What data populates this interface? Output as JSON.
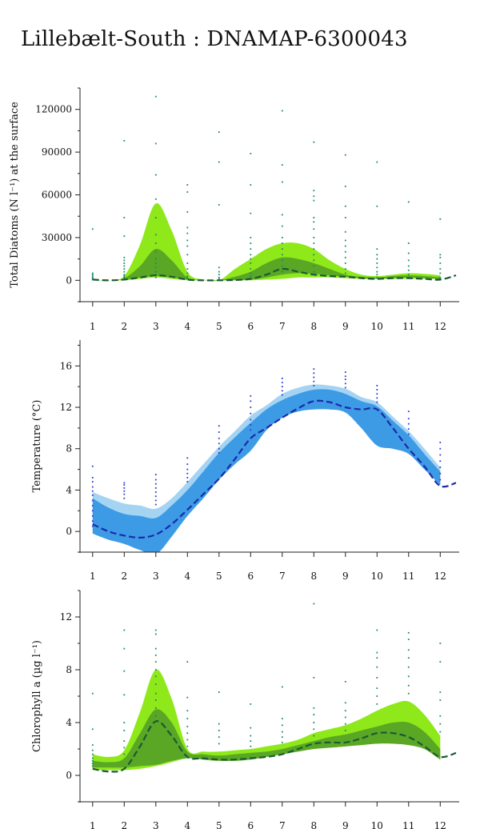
{
  "title": "Lillebælt-South : DNAMAP-6300043",
  "chart_data": [
    {
      "type": "area",
      "ylabel": "Total Diatoms (N l⁻¹) at the surface",
      "xlim": [
        0.6,
        12.6
      ],
      "ylim": [
        -15000,
        135000
      ],
      "x_ticks": [
        1,
        2,
        3,
        4,
        5,
        6,
        7,
        8,
        9,
        10,
        11,
        12
      ],
      "y_ticks": [
        0,
        30000,
        60000,
        90000,
        120000
      ],
      "y_tick_labels": [
        "0",
        "30000",
        "60000",
        "90000",
        "120000"
      ],
      "colors": {
        "outer": "#8ee81a",
        "inner": "#5aa625",
        "line": "#1a5a35",
        "dots": "#1f8a6a"
      },
      "x": [
        1,
        1.5,
        2,
        2.5,
        3,
        3.5,
        4,
        4.5,
        5,
        5.5,
        6,
        6.5,
        7,
        7.5,
        8,
        8.5,
        9,
        9.5,
        10,
        10.5,
        11,
        11.5,
        12
      ],
      "band_outer": {
        "low": [
          0,
          0,
          0,
          1000,
          2000,
          1000,
          0,
          0,
          0,
          0,
          0,
          500,
          1000,
          2000,
          2000,
          2000,
          1500,
          1000,
          1000,
          1000,
          1000,
          1000,
          1000
        ],
        "high": [
          0,
          0,
          3000,
          25000,
          54000,
          35000,
          6000,
          500,
          0,
          8000,
          15000,
          22000,
          26000,
          26000,
          22000,
          14000,
          8000,
          4000,
          3000,
          4000,
          5000,
          4500,
          3500
        ]
      },
      "band_inner": {
        "low": [
          0,
          0,
          500,
          2000,
          3000,
          2000,
          500,
          0,
          0,
          0,
          500,
          2000,
          4000,
          5000,
          4500,
          3500,
          2500,
          1500,
          1000,
          1500,
          2000,
          1500,
          1000
        ],
        "high": [
          0,
          0,
          1500,
          10000,
          22000,
          14000,
          2000,
          0,
          0,
          2500,
          6000,
          12000,
          16000,
          15000,
          12000,
          8000,
          4000,
          2500,
          2000,
          3000,
          3500,
          3000,
          2000
        ]
      },
      "median": {
        "x": [
          1,
          1.5,
          2,
          2.5,
          3,
          3.5,
          4,
          4.5,
          5,
          5.5,
          6,
          6.5,
          7,
          7.5,
          8,
          8.5,
          9,
          9.5,
          10,
          10.5,
          11,
          11.5,
          12,
          12.5
        ],
        "y": [
          500,
          0,
          500,
          2000,
          3500,
          2500,
          500,
          0,
          0,
          200,
          1000,
          4000,
          8000,
          6000,
          4000,
          3000,
          2500,
          1500,
          1000,
          1500,
          1500,
          1000,
          500,
          3500
        ]
      },
      "observations": [
        {
          "x": 1,
          "y": [
            36000,
            5000,
            4000,
            3000,
            2000,
            1500,
            1000,
            500
          ]
        },
        {
          "x": 2,
          "y": [
            98000,
            44000,
            31000,
            16000,
            14000,
            12000,
            10000,
            8000,
            6000,
            4000,
            3000,
            2000,
            1000
          ]
        },
        {
          "x": 3,
          "y": [
            129000,
            96000,
            74000,
            57000,
            44000,
            32000,
            26000,
            20000,
            15000,
            12000,
            9000,
            6000,
            4000,
            2000
          ]
        },
        {
          "x": 4,
          "y": [
            67000,
            62000,
            48000,
            37000,
            33000,
            28000,
            24000,
            18000,
            12000,
            8000,
            5000,
            3000,
            2000,
            1000
          ]
        },
        {
          "x": 5,
          "y": [
            104000,
            83000,
            53000,
            9000,
            6000,
            4000,
            2000,
            1000
          ]
        },
        {
          "x": 6,
          "y": [
            89000,
            67000,
            47000,
            30000,
            26000,
            22000,
            18000,
            15000,
            12000,
            8000,
            5000,
            3000
          ]
        },
        {
          "x": 7,
          "y": [
            119000,
            81000,
            69000,
            46000,
            38000,
            30000,
            26000,
            22000,
            18000,
            14000,
            10000,
            6000
          ]
        },
        {
          "x": 8,
          "y": [
            97000,
            63000,
            59000,
            56000,
            44000,
            41000,
            36000,
            30000,
            26000,
            22000,
            18000,
            14000,
            10000,
            6000
          ]
        },
        {
          "x": 9,
          "y": [
            88000,
            66000,
            52000,
            44000,
            34000,
            28000,
            24000,
            20000,
            16000,
            12000,
            8000,
            5000
          ]
        },
        {
          "x": 10,
          "y": [
            83000,
            52000,
            22000,
            18000,
            15000,
            12000,
            9000,
            6000,
            4000,
            2000
          ]
        },
        {
          "x": 11,
          "y": [
            55000,
            26000,
            19000,
            14000,
            10000,
            7000,
            4000,
            2000
          ]
        },
        {
          "x": 12,
          "y": [
            43000,
            18000,
            16000,
            12000,
            8000,
            5000,
            2000,
            1000
          ]
        }
      ]
    },
    {
      "type": "area",
      "ylabel": "Temperature (°C)",
      "xlim": [
        0.6,
        12.6
      ],
      "ylim": [
        -2,
        18.5
      ],
      "x_ticks": [
        1,
        2,
        3,
        4,
        5,
        6,
        7,
        8,
        9,
        10,
        11,
        12
      ],
      "y_ticks": [
        0,
        4,
        8,
        12,
        16
      ],
      "y_tick_labels": [
        "0",
        "4",
        "8",
        "12",
        "16"
      ],
      "colors": {
        "outer": "#a5d4f3",
        "inner": "#3d9be6",
        "line": "#1c2aa8",
        "dots": "#2b3cd0"
      },
      "x": [
        1,
        1.5,
        2,
        2.5,
        3,
        3.5,
        4,
        4.5,
        5,
        5.5,
        6,
        6.5,
        7,
        7.5,
        8,
        8.5,
        9,
        9.5,
        10,
        10.5,
        11,
        11.5,
        12
      ],
      "band_outer": {
        "low": [
          -0.2,
          -0.8,
          -1.2,
          -1.8,
          -2.2,
          -0.5,
          1.5,
          3.2,
          5.0,
          6.5,
          7.8,
          9.8,
          11.0,
          11.6,
          11.8,
          11.8,
          11.5,
          10.0,
          8.3,
          8.0,
          7.5,
          6.0,
          4.5
        ],
        "high": [
          3.8,
          3.2,
          2.7,
          2.5,
          2.2,
          3.2,
          4.8,
          6.5,
          8.2,
          9.7,
          11.2,
          12.2,
          13.3,
          13.9,
          14.2,
          14.1,
          13.8,
          13.0,
          12.5,
          11.1,
          9.7,
          8.0,
          6.2
        ]
      },
      "band_inner": {
        "low": [
          -0.2,
          -0.8,
          -1.2,
          -1.8,
          -2.2,
          -0.5,
          1.5,
          3.2,
          5.0,
          6.5,
          7.8,
          9.8,
          11.0,
          11.6,
          11.8,
          11.8,
          11.5,
          10.0,
          8.3,
          8.0,
          7.5,
          6.0,
          4.5
        ],
        "high": [
          3.2,
          2.3,
          1.7,
          1.5,
          1.3,
          2.5,
          4.0,
          5.8,
          7.6,
          9.1,
          10.5,
          11.8,
          12.7,
          13.3,
          13.7,
          13.7,
          13.3,
          12.6,
          12.1,
          10.7,
          9.3,
          7.5,
          5.8
        ]
      },
      "median": {
        "x": [
          1,
          1.5,
          2,
          2.5,
          3,
          3.5,
          4,
          4.5,
          5,
          5.5,
          6,
          6.5,
          7,
          7.5,
          8,
          8.5,
          9,
          9.5,
          10,
          10.5,
          11,
          11.5,
          12,
          12.5
        ],
        "y": [
          0.7,
          0,
          -0.4,
          -0.6,
          -0.3,
          0.7,
          2.1,
          3.6,
          5.1,
          7.0,
          9.0,
          10.0,
          11.0,
          11.9,
          12.6,
          12.5,
          12.0,
          11.8,
          11.8,
          10.0,
          8.0,
          6.3,
          4.4,
          4.7
        ]
      },
      "observations": [
        {
          "x": 1,
          "y": [
            6.3,
            5.2,
            4.8,
            4.3,
            3.9,
            3.5,
            3.0,
            2.5,
            2.0,
            1.5,
            1.0,
            0.5
          ]
        },
        {
          "x": 2,
          "y": [
            4.7,
            4.5,
            4.2,
            3.9,
            3.6,
            3.2
          ]
        },
        {
          "x": 3,
          "y": [
            5.5,
            5.0,
            4.6,
            4.2,
            3.8,
            3.4,
            3.0,
            2.6
          ]
        },
        {
          "x": 4,
          "y": [
            7.1,
            6.5,
            6.0,
            5.6,
            5.2,
            4.8
          ]
        },
        {
          "x": 5,
          "y": [
            10.2,
            9.6,
            9.0,
            8.5,
            8.0,
            7.6
          ]
        },
        {
          "x": 6,
          "y": [
            13.1,
            12.6,
            12.0,
            11.4,
            10.8,
            10.3,
            9.8
          ]
        },
        {
          "x": 7,
          "y": [
            14.8,
            14.4,
            14.0,
            13.6,
            13.2
          ]
        },
        {
          "x": 8,
          "y": [
            15.7,
            15.3,
            14.9,
            14.5,
            14.1
          ]
        },
        {
          "x": 9,
          "y": [
            15.4,
            15.0,
            14.7,
            14.3,
            13.9
          ]
        },
        {
          "x": 10,
          "y": [
            14.1,
            13.7,
            13.3,
            12.9,
            12.5
          ]
        },
        {
          "x": 11,
          "y": [
            11.6,
            10.9,
            10.4,
            9.9,
            9.4
          ]
        },
        {
          "x": 12,
          "y": [
            8.6,
            8.0,
            7.4,
            6.8,
            6.2,
            5.6,
            5.0
          ]
        }
      ]
    },
    {
      "type": "area",
      "ylabel": "Chlorophyll a (µg l⁻¹)",
      "xlim": [
        0.6,
        12.6
      ],
      "ylim": [
        -2,
        14
      ],
      "x_ticks": [
        1,
        2,
        3,
        4,
        5,
        6,
        7,
        8,
        9,
        10,
        11,
        12
      ],
      "y_ticks": [
        0,
        4,
        8,
        12
      ],
      "y_tick_labels": [
        "0",
        "4",
        "8",
        "12"
      ],
      "colors": {
        "outer": "#8ee81a",
        "inner": "#5aa625",
        "line": "#1a5a35",
        "dots": "#1f8a6a"
      },
      "x": [
        1,
        1.5,
        2,
        2.5,
        3,
        3.5,
        4,
        4.5,
        5,
        5.5,
        6,
        6.5,
        7,
        7.5,
        8,
        8.5,
        9,
        9.5,
        10,
        10.5,
        11,
        11.5,
        12
      ],
      "band_outer": {
        "low": [
          0.4,
          0.4,
          0.4,
          0.5,
          0.7,
          1.0,
          1.3,
          1.2,
          1.1,
          1.1,
          1.2,
          1.4,
          1.6,
          1.8,
          2.0,
          2.1,
          2.2,
          2.3,
          2.4,
          2.4,
          2.3,
          2.0,
          1.2
        ],
        "high": [
          1.6,
          1.4,
          1.9,
          4.8,
          8.0,
          5.8,
          2.0,
          1.8,
          1.8,
          1.9,
          2.0,
          2.2,
          2.4,
          2.7,
          3.2,
          3.5,
          3.8,
          4.3,
          4.9,
          5.4,
          5.6,
          4.6,
          3.0
        ]
      },
      "band_inner": {
        "low": [
          0.6,
          0.6,
          0.6,
          0.7,
          0.8,
          1.1,
          1.3,
          1.2,
          1.1,
          1.1,
          1.2,
          1.4,
          1.6,
          1.8,
          2.0,
          2.1,
          2.2,
          2.3,
          2.4,
          2.4,
          2.3,
          2.0,
          1.2
        ],
        "high": [
          1.1,
          1.0,
          1.3,
          3.2,
          5.0,
          4.0,
          1.8,
          1.6,
          1.5,
          1.6,
          1.7,
          1.8,
          2.0,
          2.3,
          2.6,
          2.9,
          3.1,
          3.4,
          3.7,
          4.0,
          4.0,
          3.3,
          2.0
        ]
      },
      "median": {
        "x": [
          1,
          1.5,
          2,
          2.5,
          3,
          3.5,
          4,
          4.5,
          5,
          5.5,
          6,
          6.5,
          7,
          7.5,
          8,
          8.5,
          9,
          9.5,
          10,
          10.5,
          11,
          11.5,
          12,
          12.5
        ],
        "y": [
          0.5,
          0.3,
          0.5,
          2.2,
          4.1,
          3.0,
          1.4,
          1.3,
          1.2,
          1.2,
          1.3,
          1.4,
          1.6,
          2.0,
          2.4,
          2.5,
          2.5,
          2.8,
          3.2,
          3.2,
          2.9,
          2.2,
          1.4,
          1.7
        ]
      },
      "observations": [
        {
          "x": 1,
          "y": [
            6.2,
            3.5,
            2.3,
            1.9,
            1.6,
            1.3,
            1.1,
            0.9,
            0.7
          ]
        },
        {
          "x": 2,
          "y": [
            11.0,
            9.6,
            7.9,
            6.1,
            4.0,
            3.4,
            2.6,
            2.1,
            1.6
          ]
        },
        {
          "x": 3,
          "y": [
            11.0,
            10.7,
            9.6,
            9.1,
            8.6,
            8.0,
            7.5,
            6.9,
            6.2,
            5.7,
            5.1,
            4.5
          ]
        },
        {
          "x": 4,
          "y": [
            8.6,
            5.9,
            4.9,
            4.3,
            3.7,
            3.2,
            2.7,
            2.2
          ]
        },
        {
          "x": 5,
          "y": [
            6.3,
            3.9,
            3.4,
            2.9,
            2.4
          ]
        },
        {
          "x": 6,
          "y": [
            5.4,
            3.6,
            3.0,
            2.6,
            2.2
          ]
        },
        {
          "x": 7,
          "y": [
            6.7,
            4.3,
            3.8,
            3.3,
            2.9,
            2.5
          ]
        },
        {
          "x": 8,
          "y": [
            13.0,
            7.4,
            5.1,
            4.6,
            4.0,
            3.5,
            3.0
          ]
        },
        {
          "x": 9,
          "y": [
            7.1,
            5.5,
            4.9,
            4.4,
            3.9,
            3.4
          ]
        },
        {
          "x": 10,
          "y": [
            11.0,
            9.3,
            8.9,
            8.2,
            7.4,
            6.6,
            6.0,
            5.4
          ]
        },
        {
          "x": 11,
          "y": [
            10.8,
            10.3,
            9.5,
            8.9,
            8.2,
            7.5,
            6.8,
            6.2
          ]
        },
        {
          "x": 12,
          "y": [
            10.0,
            8.6,
            6.3,
            5.7,
            4.5,
            3.9,
            3.3
          ]
        }
      ]
    }
  ]
}
